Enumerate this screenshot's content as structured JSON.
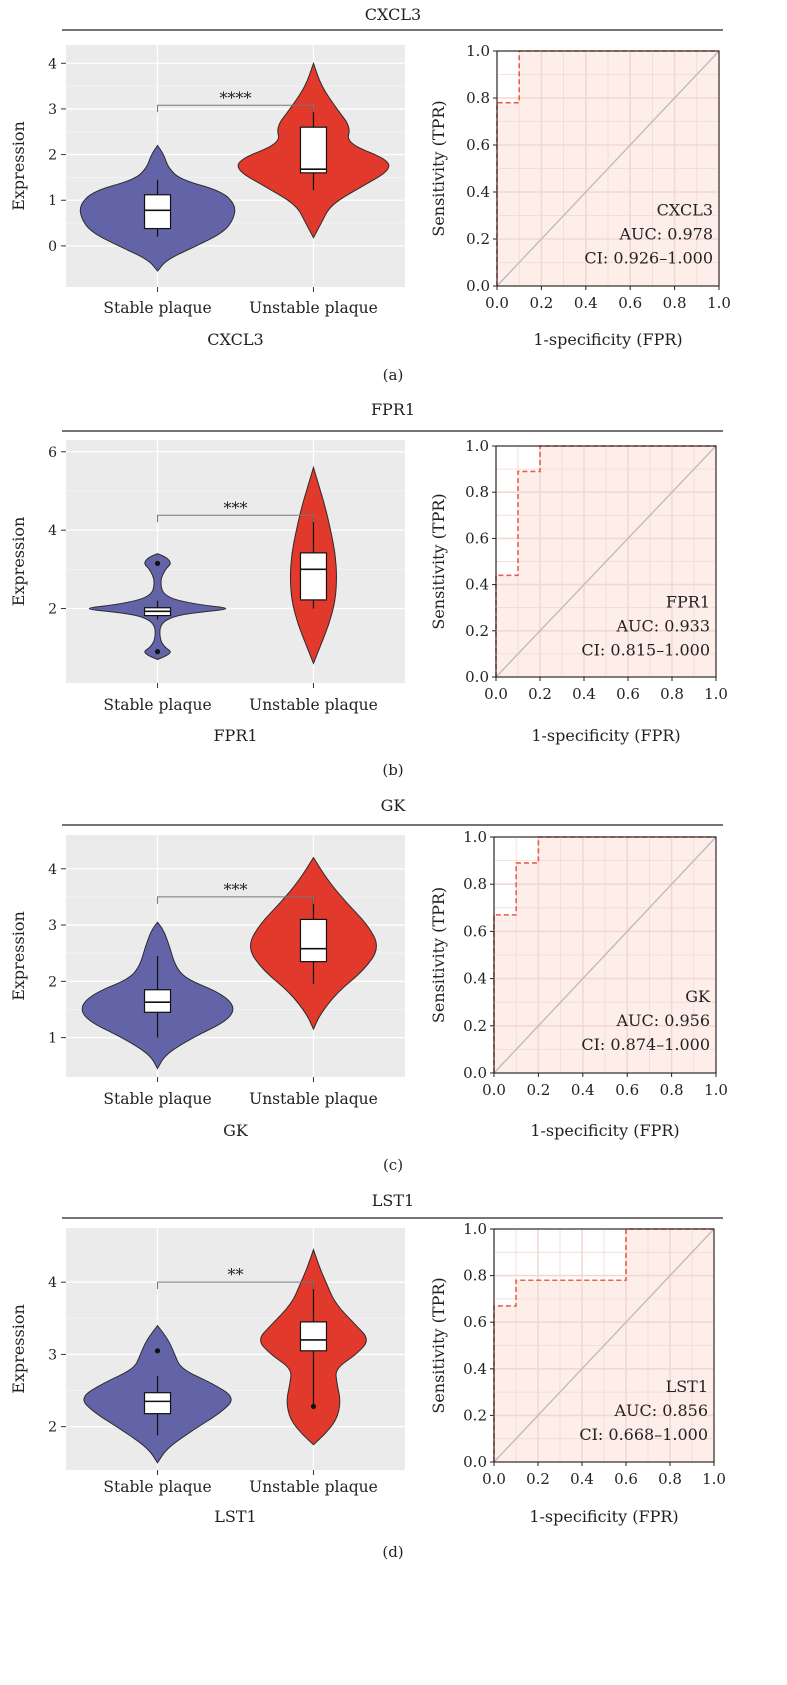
{
  "panels": [
    {
      "title": "CXCL3",
      "label": "(a)",
      "violin": {
        "xlabel": "CXCL3",
        "ylabel": "Expression",
        "categories": [
          "Stable plaque",
          "Unstable plaque"
        ],
        "ylim": [
          -0.9,
          4.4
        ],
        "yticks": [
          0,
          1,
          2,
          3,
          4
        ],
        "significance": "****",
        "sig_y": 3.08,
        "groups": [
          {
            "name": "Stable plaque",
            "color": "#6264a7",
            "profile": [
              [
                -0.55,
                0
              ],
              [
                -0.3,
                0.12
              ],
              [
                0,
                0.5
              ],
              [
                0.3,
                0.85
              ],
              [
                0.6,
                0.98
              ],
              [
                0.9,
                1.0
              ],
              [
                1.2,
                0.82
              ],
              [
                1.45,
                0.3
              ],
              [
                1.7,
                0.14
              ],
              [
                2.0,
                0.08
              ],
              [
                2.2,
                0
              ]
            ],
            "box": {
              "q1": 0.38,
              "median": 0.78,
              "q3": 1.12,
              "whisker_low": 0.2,
              "whisker_high": 1.45
            },
            "outliers": []
          },
          {
            "name": "Unstable plaque",
            "color": "#e1392b",
            "profile": [
              [
                0.18,
                0
              ],
              [
                0.5,
                0.1
              ],
              [
                0.9,
                0.22
              ],
              [
                1.3,
                0.62
              ],
              [
                1.65,
                0.98
              ],
              [
                1.9,
                0.95
              ],
              [
                2.25,
                0.42
              ],
              [
                2.6,
                0.48
              ],
              [
                3.0,
                0.3
              ],
              [
                3.5,
                0.1
              ],
              [
                4.0,
                0
              ]
            ],
            "box": {
              "q1": 1.6,
              "median": 1.68,
              "q3": 2.6,
              "whisker_low": 1.22,
              "whisker_high": 3.0
            },
            "outliers": []
          }
        ]
      },
      "roc": {
        "xlabel": "1-specificity (FPR)",
        "ylabel": "Sensitivity (TPR)",
        "xticks": [
          "0.0",
          "0.2",
          "0.4",
          "0.6",
          "0.8",
          "1.0"
        ],
        "yticks": [
          "0.0",
          "0.2",
          "0.4",
          "0.6",
          "0.8",
          "1.0"
        ],
        "fpr": [
          0,
          0,
          0,
          0.1,
          0.1,
          1
        ],
        "tpr": [
          0,
          0,
          0.78,
          0.78,
          1,
          1
        ],
        "auc": 0.978,
        "legend": [
          "CXCL3",
          "AUC: 0.978",
          "CI: 0.926–1.000"
        ]
      }
    },
    {
      "title": "FPR1",
      "label": "(b)",
      "violin": {
        "xlabel": "FPR1",
        "ylabel": "Expression",
        "categories": [
          "Stable plaque",
          "Unstable plaque"
        ],
        "ylim": [
          0.1,
          6.3
        ],
        "yticks": [
          2,
          4,
          6
        ],
        "significance": "***",
        "sig_y": 4.38,
        "groups": [
          {
            "name": "Stable plaque",
            "color": "#6264a7",
            "profile": [
              [
                0.7,
                0
              ],
              [
                0.8,
                0.12
              ],
              [
                0.9,
                0.18
              ],
              [
                1.0,
                0.1
              ],
              [
                1.2,
                0.03
              ],
              [
                1.6,
                0.03
              ],
              [
                1.8,
                0.2
              ],
              [
                1.9,
                0.5
              ],
              [
                2.0,
                1.0
              ],
              [
                2.1,
                0.5
              ],
              [
                2.3,
                0.08
              ],
              [
                2.7,
                0.03
              ],
              [
                3.0,
                0.1
              ],
              [
                3.15,
                0.18
              ],
              [
                3.3,
                0.12
              ],
              [
                3.4,
                0
              ]
            ],
            "box": {
              "q1": 1.82,
              "median": 1.93,
              "q3": 2.02,
              "whisker_low": 1.72,
              "whisker_high": 2.2
            },
            "outliers": [
              3.15,
              0.9
            ]
          },
          {
            "name": "Unstable plaque",
            "color": "#e1392b",
            "profile": [
              [
                0.6,
                0
              ],
              [
                1.0,
                0.08
              ],
              [
                1.6,
                0.2
              ],
              [
                2.2,
                0.28
              ],
              [
                2.8,
                0.3
              ],
              [
                3.4,
                0.28
              ],
              [
                4.0,
                0.22
              ],
              [
                4.6,
                0.15
              ],
              [
                5.2,
                0.06
              ],
              [
                5.6,
                0
              ]
            ],
            "box": {
              "q1": 2.22,
              "median": 3.0,
              "q3": 3.42,
              "whisker_low": 2.0,
              "whisker_high": 4.35
            },
            "outliers": []
          }
        ]
      },
      "roc": {
        "xlabel": "1-specificity (FPR)",
        "ylabel": "Sensitivity (TPR)",
        "xticks": [
          "0.0",
          "0.2",
          "0.4",
          "0.6",
          "0.8",
          "1.0"
        ],
        "yticks": [
          "0.0",
          "0.2",
          "0.4",
          "0.6",
          "0.8",
          "1.0"
        ],
        "fpr": [
          0,
          0,
          0,
          0.1,
          0.1,
          0.2,
          0.2,
          1
        ],
        "tpr": [
          0,
          0,
          0.44,
          0.44,
          0.89,
          0.89,
          1,
          1
        ],
        "auc": 0.933,
        "legend": [
          "FPR1",
          "AUC: 0.933",
          "CI: 0.815–1.000"
        ]
      }
    },
    {
      "title": "GK",
      "label": "(c)",
      "violin": {
        "xlabel": "GK",
        "ylabel": "Expression",
        "categories": [
          "Stable plaque",
          "Unstable plaque"
        ],
        "ylim": [
          0.3,
          4.6
        ],
        "yticks": [
          1,
          2,
          3,
          4
        ],
        "significance": "***",
        "sig_y": 3.5,
        "groups": [
          {
            "name": "Stable plaque",
            "color": "#6264a7",
            "profile": [
              [
                0.45,
                0
              ],
              [
                0.7,
                0.1
              ],
              [
                1.0,
                0.45
              ],
              [
                1.3,
                0.9
              ],
              [
                1.55,
                1.0
              ],
              [
                1.8,
                0.8
              ],
              [
                2.05,
                0.35
              ],
              [
                2.3,
                0.22
              ],
              [
                2.6,
                0.16
              ],
              [
                2.9,
                0.08
              ],
              [
                3.05,
                0
              ]
            ],
            "box": {
              "q1": 1.45,
              "median": 1.63,
              "q3": 1.85,
              "whisker_low": 1.0,
              "whisker_high": 2.45
            },
            "outliers": []
          },
          {
            "name": "Unstable plaque",
            "color": "#e1392b",
            "profile": [
              [
                1.15,
                0
              ],
              [
                1.4,
                0.08
              ],
              [
                1.8,
                0.3
              ],
              [
                2.2,
                0.65
              ],
              [
                2.6,
                0.85
              ],
              [
                3.0,
                0.7
              ],
              [
                3.4,
                0.42
              ],
              [
                3.8,
                0.18
              ],
              [
                4.2,
                0
              ]
            ],
            "box": {
              "q1": 2.35,
              "median": 2.58,
              "q3": 3.1,
              "whisker_low": 1.95,
              "whisker_high": 3.5
            },
            "outliers": []
          }
        ]
      },
      "roc": {
        "xlabel": "1-specificity (FPR)",
        "ylabel": "Sensitivity (TPR)",
        "xticks": [
          "0.0",
          "0.2",
          "0.4",
          "0.6",
          "0.8",
          "1.0"
        ],
        "yticks": [
          "0.0",
          "0.2",
          "0.4",
          "0.6",
          "0.8",
          "1.0"
        ],
        "fpr": [
          0,
          0,
          0,
          0.1,
          0.1,
          0.2,
          0.2,
          1
        ],
        "tpr": [
          0,
          0,
          0.67,
          0.67,
          0.89,
          0.89,
          1,
          1
        ],
        "auc": 0.956,
        "legend": [
          "GK",
          "AUC: 0.956",
          "CI: 0.874–1.000"
        ]
      }
    },
    {
      "title": "LST1",
      "label": "(d)",
      "violin": {
        "xlabel": "LST1",
        "ylabel": "Expression",
        "categories": [
          "Stable plaque",
          "Unstable plaque"
        ],
        "ylim": [
          1.4,
          4.75
        ],
        "yticks": [
          2,
          3,
          4
        ],
        "significance": "**",
        "sig_y": 4.0,
        "groups": [
          {
            "name": "Stable plaque",
            "color": "#6264a7",
            "profile": [
              [
                1.5,
                0
              ],
              [
                1.7,
                0.12
              ],
              [
                1.95,
                0.45
              ],
              [
                2.2,
                0.82
              ],
              [
                2.4,
                1.0
              ],
              [
                2.6,
                0.7
              ],
              [
                2.8,
                0.3
              ],
              [
                3.0,
                0.22
              ],
              [
                3.2,
                0.14
              ],
              [
                3.4,
                0
              ]
            ],
            "box": {
              "q1": 2.18,
              "median": 2.35,
              "q3": 2.47,
              "whisker_low": 1.88,
              "whisker_high": 2.7
            },
            "outliers": [
              3.05
            ]
          },
          {
            "name": "Unstable plaque",
            "color": "#e1392b",
            "profile": [
              [
                1.75,
                0
              ],
              [
                1.9,
                0.15
              ],
              [
                2.1,
                0.3
              ],
              [
                2.35,
                0.35
              ],
              [
                2.6,
                0.3
              ],
              [
                2.8,
                0.28
              ],
              [
                3.0,
                0.55
              ],
              [
                3.2,
                0.72
              ],
              [
                3.4,
                0.55
              ],
              [
                3.7,
                0.28
              ],
              [
                4.0,
                0.16
              ],
              [
                4.2,
                0.08
              ],
              [
                4.45,
                0
              ]
            ],
            "box": {
              "q1": 3.05,
              "median": 3.2,
              "q3": 3.45,
              "whisker_low": 2.28,
              "whisker_high": 4.0
            },
            "outliers": [
              2.28
            ]
          }
        ]
      },
      "roc": {
        "xlabel": "1-specificity (FPR)",
        "ylabel": "Sensitivity (TPR)",
        "xticks": [
          "0.0",
          "0.2",
          "0.4",
          "0.6",
          "0.8",
          "1.0"
        ],
        "yticks": [
          "0.0",
          "0.2",
          "0.4",
          "0.6",
          "0.8",
          "1.0"
        ],
        "fpr": [
          0,
          0,
          0,
          0.1,
          0.1,
          0.6,
          0.6,
          1
        ],
        "tpr": [
          0,
          0,
          0.67,
          0.67,
          0.78,
          0.78,
          1,
          1
        ],
        "auc": 0.856,
        "legend": [
          "LST1",
          "AUC: 0.856",
          "CI: 0.668–1.000"
        ]
      }
    }
  ],
  "chart_data": [
    {
      "type": "violin",
      "title": "CXCL3",
      "xlabel": "CXCL3",
      "ylabel": "Expression",
      "categories": [
        "Stable plaque",
        "Unstable plaque"
      ],
      "ylim": [
        -0.9,
        4.4
      ],
      "medians": [
        0.78,
        1.68
      ],
      "significance": "****"
    },
    {
      "type": "line",
      "title": "CXCL3",
      "xlabel": "1-specificity (FPR)",
      "ylabel": "Sensitivity (TPR)",
      "xlim": [
        0,
        1
      ],
      "ylim": [
        0,
        1
      ],
      "x": [
        0,
        0,
        0.1,
        0.1,
        1
      ],
      "y": [
        0,
        0.78,
        0.78,
        1,
        1
      ],
      "annotations": [
        "CXCL3",
        "AUC: 0.978",
        "CI: 0.926–1.000"
      ]
    },
    {
      "type": "violin",
      "title": "FPR1",
      "xlabel": "FPR1",
      "ylabel": "Expression",
      "categories": [
        "Stable plaque",
        "Unstable plaque"
      ],
      "ylim": [
        0.1,
        6.3
      ],
      "medians": [
        1.93,
        3.0
      ],
      "significance": "***"
    },
    {
      "type": "line",
      "title": "FPR1",
      "xlabel": "1-specificity (FPR)",
      "ylabel": "Sensitivity (TPR)",
      "xlim": [
        0,
        1
      ],
      "ylim": [
        0,
        1
      ],
      "x": [
        0,
        0,
        0.1,
        0.1,
        0.2,
        0.2,
        1
      ],
      "y": [
        0,
        0.44,
        0.44,
        0.89,
        0.89,
        1,
        1
      ],
      "annotations": [
        "FPR1",
        "AUC: 0.933",
        "CI: 0.815–1.000"
      ]
    },
    {
      "type": "violin",
      "title": "GK",
      "xlabel": "GK",
      "ylabel": "Expression",
      "categories": [
        "Stable plaque",
        "Unstable plaque"
      ],
      "ylim": [
        0.3,
        4.6
      ],
      "medians": [
        1.63,
        2.58
      ],
      "significance": "***"
    },
    {
      "type": "line",
      "title": "GK",
      "xlabel": "1-specificity (FPR)",
      "ylabel": "Sensitivity (TPR)",
      "xlim": [
        0,
        1
      ],
      "ylim": [
        0,
        1
      ],
      "x": [
        0,
        0,
        0.1,
        0.1,
        0.2,
        0.2,
        1
      ],
      "y": [
        0,
        0.67,
        0.67,
        0.89,
        0.89,
        1,
        1
      ],
      "annotations": [
        "GK",
        "AUC: 0.956",
        "CI: 0.874–1.000"
      ]
    },
    {
      "type": "violin",
      "title": "LST1",
      "xlabel": "LST1",
      "ylabel": "Expression",
      "categories": [
        "Stable plaque",
        "Unstable plaque"
      ],
      "ylim": [
        1.4,
        4.75
      ],
      "medians": [
        2.35,
        3.2
      ],
      "significance": "**"
    },
    {
      "type": "line",
      "title": "LST1",
      "xlabel": "1-specificity (FPR)",
      "ylabel": "Sensitivity (TPR)",
      "xlim": [
        0,
        1
      ],
      "ylim": [
        0,
        1
      ],
      "x": [
        0,
        0,
        0.1,
        0.1,
        0.6,
        0.6,
        1
      ],
      "y": [
        0,
        0.67,
        0.67,
        0.78,
        0.78,
        1,
        1
      ],
      "annotations": [
        "LST1",
        "AUC: 0.856",
        "CI: 0.668–1.000"
      ]
    }
  ]
}
